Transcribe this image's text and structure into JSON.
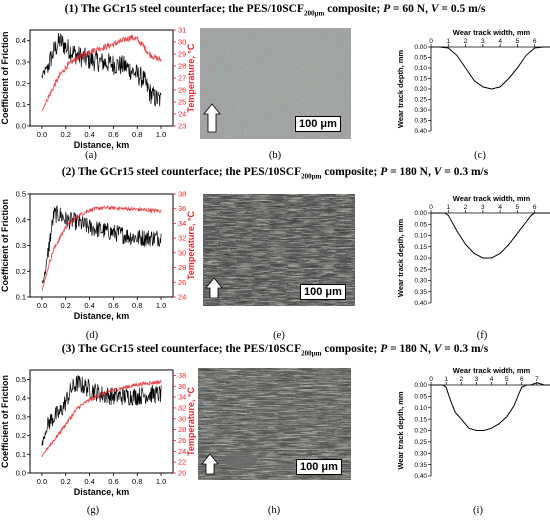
{
  "rows": [
    {
      "title": {
        "num": "(1)",
        "pre": "The GCr15 steel counterface; the PES/10SCF",
        "sub": "200μm",
        "post": " composite; ",
        "P": "P",
        "peq": " = 60 N, ",
        "V": "V",
        "veq": " = 0.5 m/s"
      },
      "caps": [
        "(a)",
        "(b)",
        "(c)"
      ],
      "scale": "100 μm"
    },
    {
      "title": {
        "num": "(2)",
        "pre": "The GCr15 steel counterface; the PES/10SCF",
        "sub": "200μm",
        "post": " composite; ",
        "P": "P",
        "peq": " = 180 N, ",
        "V": "V",
        "veq": " = 0.3 m/s"
      },
      "caps": [
        "(d)",
        "(e)",
        "(f)"
      ],
      "scale": "100 μm"
    },
    {
      "title": {
        "num": "(3)",
        "pre": "The GCr15 steel counterface; the PES/10SCF",
        "sub": "200μm",
        "post": " composite; ",
        "P": "P",
        "peq": " = 180 N, ",
        "V": "V",
        "veq": " = 0.3 m/s"
      },
      "caps": [
        "(g)",
        "(h)",
        "(i)"
      ],
      "scale": "100 μm"
    }
  ],
  "colors": {
    "cof": "#000000",
    "temp": "#e8282b",
    "micro_dark": "#2a2a2a"
  },
  "chart_data": [
    {
      "type": "line",
      "panel": "(a)",
      "xlabel": "Distance, km",
      "ylabel": "Coefficient of Friction",
      "y2label": "Temperature, °C",
      "xlim": [
        -0.1,
        1.1
      ],
      "ylim": [
        0.0,
        0.45
      ],
      "y2lim": [
        23,
        31
      ],
      "xticks": [
        0.0,
        0.2,
        0.4,
        0.6,
        0.8,
        1.0
      ],
      "yticks": [
        0.0,
        0.1,
        0.2,
        0.3,
        0.4
      ],
      "y2ticks": [
        23,
        24,
        25,
        26,
        27,
        28,
        29,
        30,
        31
      ],
      "series": [
        {
          "axis": "y",
          "x": [
            0.0,
            0.05,
            0.1,
            0.15,
            0.2,
            0.3,
            0.4,
            0.5,
            0.6,
            0.7,
            0.75,
            0.8,
            0.85,
            0.9,
            0.95,
            1.0
          ],
          "y": [
            0.23,
            0.28,
            0.35,
            0.4,
            0.37,
            0.33,
            0.31,
            0.3,
            0.29,
            0.28,
            0.26,
            0.24,
            0.22,
            0.16,
            0.13,
            0.12
          ],
          "noise": 0.05
        },
        {
          "axis": "y2",
          "x": [
            0.0,
            0.05,
            0.1,
            0.15,
            0.2,
            0.3,
            0.4,
            0.5,
            0.6,
            0.7,
            0.75,
            0.8,
            0.85,
            0.9,
            0.95,
            1.0
          ],
          "y": [
            24.3,
            25.3,
            26.3,
            27.2,
            27.9,
            28.7,
            29.2,
            29.5,
            29.8,
            30.2,
            30.4,
            30.2,
            29.7,
            29.0,
            28.7,
            28.5
          ],
          "noise": 0.25
        }
      ]
    },
    {
      "type": "line",
      "panel": "(d)",
      "xlabel": "Distance, km",
      "ylabel": "Coefficient of Friction",
      "y2label": "Temperature, °C",
      "xlim": [
        -0.1,
        1.1
      ],
      "ylim": [
        0.1,
        0.5
      ],
      "y2lim": [
        24,
        38
      ],
      "xticks": [
        0.0,
        0.2,
        0.4,
        0.6,
        0.8,
        1.0
      ],
      "yticks": [
        0.1,
        0.2,
        0.3,
        0.4,
        0.5
      ],
      "y2ticks": [
        24,
        26,
        28,
        30,
        32,
        34,
        36,
        38
      ],
      "series": [
        {
          "axis": "y",
          "x": [
            0.0,
            0.03,
            0.06,
            0.1,
            0.15,
            0.2,
            0.3,
            0.4,
            0.5,
            0.6,
            0.7,
            0.8,
            0.9,
            1.0
          ],
          "y": [
            0.15,
            0.2,
            0.3,
            0.42,
            0.42,
            0.4,
            0.39,
            0.37,
            0.36,
            0.35,
            0.34,
            0.33,
            0.33,
            0.33
          ],
          "noise": 0.035
        },
        {
          "axis": "y2",
          "x": [
            0.0,
            0.03,
            0.06,
            0.1,
            0.15,
            0.2,
            0.3,
            0.4,
            0.5,
            0.6,
            0.7,
            0.8,
            0.9,
            1.0
          ],
          "y": [
            25.0,
            26.5,
            28.5,
            30.5,
            32.0,
            33.5,
            35.0,
            35.8,
            36.1,
            36.1,
            36.0,
            35.9,
            35.8,
            35.7
          ],
          "noise": 0.25
        }
      ]
    },
    {
      "type": "line",
      "panel": "(g)",
      "xlabel": "Distance, km",
      "ylabel": "Coefficient of Friction",
      "y2label": "Temperature, °C",
      "xlim": [
        -0.1,
        1.1
      ],
      "ylim": [
        0.0,
        0.55
      ],
      "y2lim": [
        20,
        39
      ],
      "xticks": [
        0.0,
        0.2,
        0.4,
        0.6,
        0.8,
        1.0
      ],
      "yticks": [
        0.0,
        0.1,
        0.2,
        0.3,
        0.4,
        0.5
      ],
      "y2ticks": [
        20,
        22,
        24,
        26,
        28,
        30,
        32,
        34,
        36,
        38
      ],
      "series": [
        {
          "axis": "y",
          "x": [
            0.0,
            0.03,
            0.06,
            0.1,
            0.15,
            0.2,
            0.25,
            0.3,
            0.4,
            0.5,
            0.6,
            0.7,
            0.8,
            0.9,
            1.0
          ],
          "y": [
            0.15,
            0.22,
            0.27,
            0.3,
            0.32,
            0.38,
            0.45,
            0.48,
            0.45,
            0.42,
            0.41,
            0.41,
            0.41,
            0.42,
            0.42
          ],
          "noise": 0.05
        },
        {
          "axis": "y2",
          "x": [
            0.0,
            0.03,
            0.06,
            0.1,
            0.15,
            0.2,
            0.25,
            0.3,
            0.4,
            0.5,
            0.6,
            0.7,
            0.8,
            0.9,
            1.0
          ],
          "y": [
            23.0,
            24.0,
            25.0,
            26.0,
            27.5,
            29.0,
            30.5,
            32.0,
            33.5,
            34.5,
            35.3,
            35.8,
            36.3,
            36.6,
            36.8
          ],
          "noise": 0.35
        }
      ]
    },
    {
      "type": "line",
      "panel": "(c)",
      "kind": "profile",
      "xlabel": "Wear track width, mm",
      "ylabel": "Wear track depth, mm",
      "xlim": [
        0,
        7
      ],
      "ylim": [
        0.4,
        0.0
      ],
      "xticks": [
        0,
        1,
        2,
        3,
        4,
        5,
        6,
        7
      ],
      "yticks": [
        0.0,
        0.05,
        0.1,
        0.15,
        0.2,
        0.25,
        0.3,
        0.35,
        0.4
      ],
      "series": [
        {
          "x": [
            0,
            0.5,
            1,
            1.5,
            2,
            2.5,
            3,
            3.5,
            4,
            4.5,
            5,
            5.5,
            6,
            6.5,
            7
          ],
          "y": [
            0.0,
            0.0,
            0.005,
            0.04,
            0.1,
            0.16,
            0.19,
            0.2,
            0.19,
            0.15,
            0.1,
            0.04,
            0.005,
            0.0,
            0.0
          ]
        }
      ]
    },
    {
      "type": "line",
      "panel": "(f)",
      "kind": "profile",
      "xlabel": "Wear track width, mm",
      "ylabel": "Wear track depth, mm",
      "xlim": [
        0,
        7
      ],
      "ylim": [
        0.4,
        0.0
      ],
      "xticks": [
        0,
        1,
        2,
        3,
        4,
        5,
        6,
        7
      ],
      "yticks": [
        0.0,
        0.05,
        0.1,
        0.15,
        0.2,
        0.25,
        0.3,
        0.35,
        0.4
      ],
      "series": [
        {
          "x": [
            0,
            0.5,
            0.8,
            1,
            1.5,
            2,
            2.5,
            3,
            3.5,
            4,
            4.5,
            5,
            5.5,
            5.8,
            6,
            6.5,
            7
          ],
          "y": [
            0.0,
            0.0,
            0.0,
            0.01,
            0.08,
            0.14,
            0.18,
            0.2,
            0.2,
            0.18,
            0.14,
            0.09,
            0.04,
            0.01,
            0.0,
            0.0,
            0.0
          ]
        }
      ]
    },
    {
      "type": "line",
      "panel": "(i)",
      "kind": "profile",
      "xlabel": "Wear track width, mm",
      "ylabel": "Wear track depth, mm",
      "xlim": [
        0,
        8
      ],
      "ylim": [
        0.4,
        0.0
      ],
      "xticks": [
        0,
        1,
        2,
        3,
        4,
        5,
        6,
        7,
        8
      ],
      "yticks": [
        0.0,
        0.05,
        0.1,
        0.15,
        0.2,
        0.25,
        0.3,
        0.35,
        0.4
      ],
      "series": [
        {
          "x": [
            0,
            0.5,
            0.8,
            1,
            1.3,
            1.6,
            2,
            2.5,
            3,
            3.5,
            4,
            4.5,
            5,
            5.5,
            5.8,
            6,
            6.3,
            6.6,
            7,
            7.5,
            8
          ],
          "y": [
            0.0,
            0.0,
            0.0,
            0.01,
            0.07,
            0.12,
            0.15,
            0.19,
            0.2,
            0.2,
            0.19,
            0.17,
            0.14,
            0.09,
            0.04,
            0.01,
            0.0,
            0.0,
            -0.01,
            0.0,
            0.0
          ]
        }
      ]
    }
  ]
}
